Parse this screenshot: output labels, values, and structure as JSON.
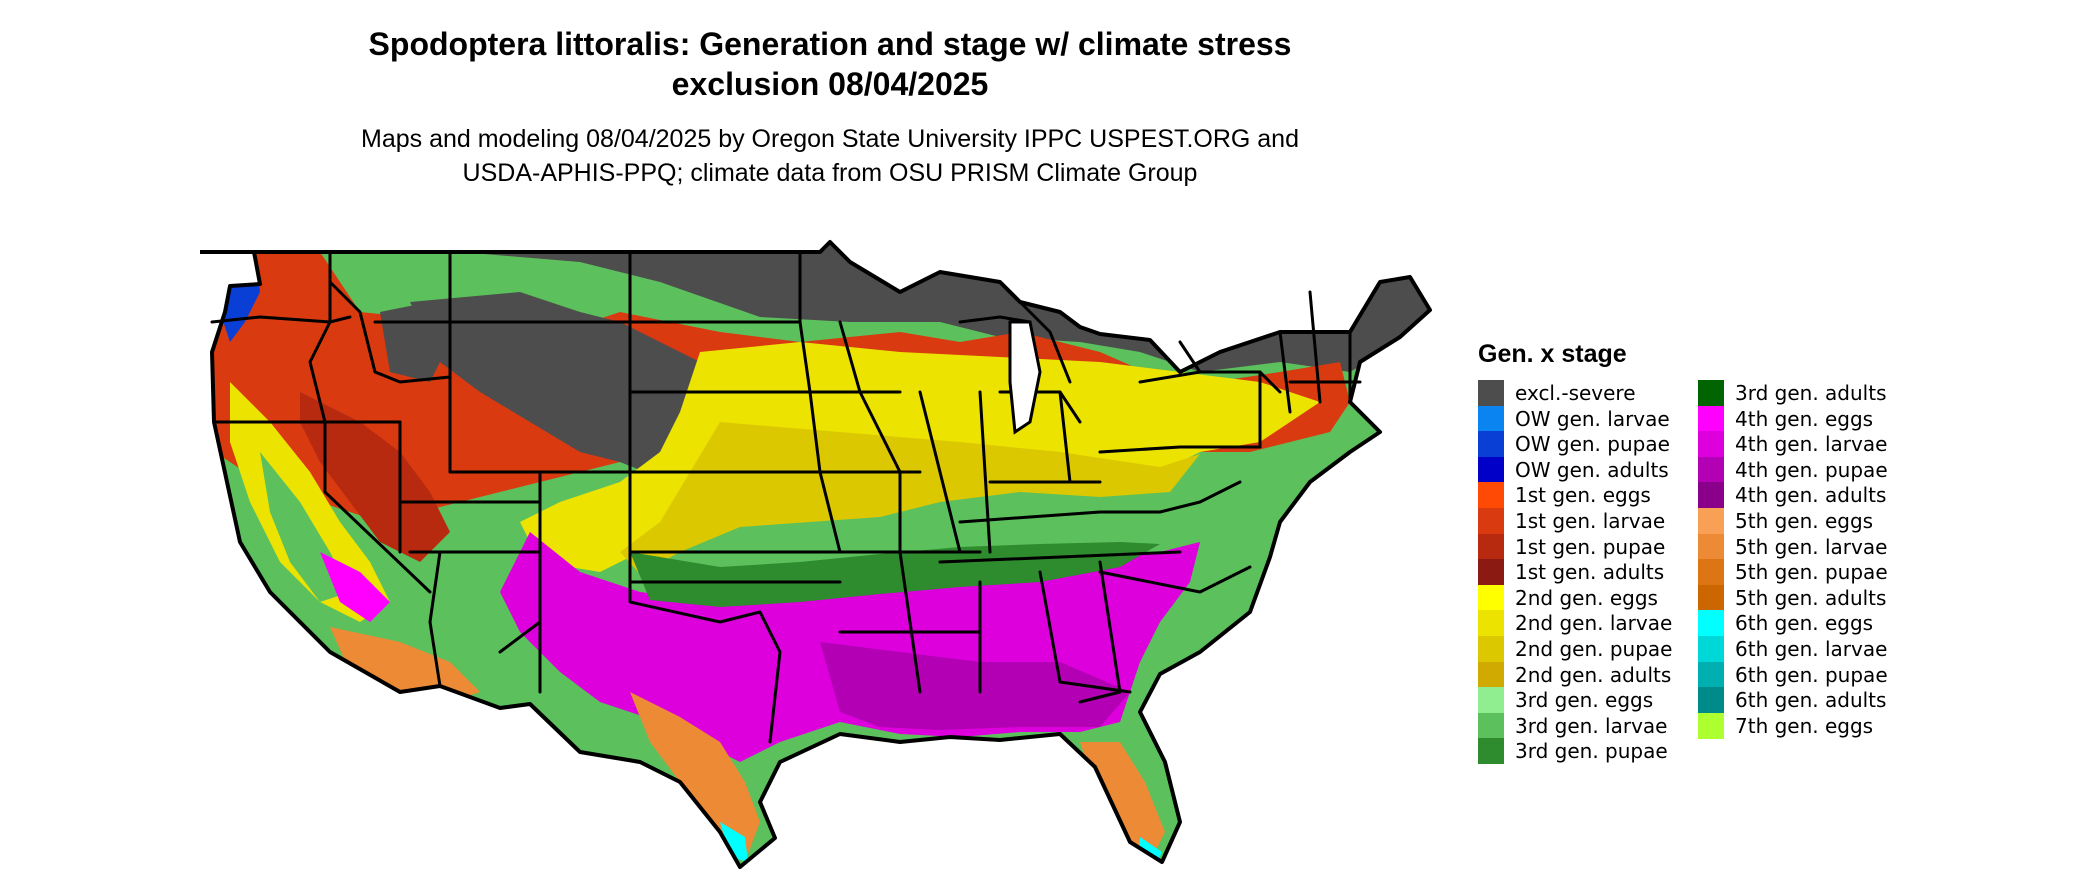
{
  "title_line1": "Spodoptera littoralis: Generation and stage w/ climate stress",
  "title_line2": "exclusion 08/04/2025",
  "subtitle_line1": "Maps and modeling 08/04/2025 by Oregon State University IPPC USPEST.ORG and",
  "subtitle_line2": "USDA-APHIS-PPQ; climate data from OSU PRISM Climate Group",
  "legend": {
    "title": "Gen. x stage",
    "items": [
      {
        "label": "excl.-severe",
        "color": "#4d4d4d"
      },
      {
        "label": "OW gen. larvae",
        "color": "#0a84f0"
      },
      {
        "label": "OW gen. pupae",
        "color": "#0a3fd6"
      },
      {
        "label": "OW gen. adults",
        "color": "#0000c8"
      },
      {
        "label": "1st gen. eggs",
        "color": "#ff4a06"
      },
      {
        "label": "1st gen. larvae",
        "color": "#d93a10"
      },
      {
        "label": "1st gen. pupae",
        "color": "#b82a10"
      },
      {
        "label": "1st gen. adults",
        "color": "#8b1a12"
      },
      {
        "label": "2nd gen. eggs",
        "color": "#ffff00"
      },
      {
        "label": "2nd gen. larvae",
        "color": "#ece400"
      },
      {
        "label": "2nd gen. pupae",
        "color": "#dcc800"
      },
      {
        "label": "2nd gen. adults",
        "color": "#d0aa00"
      },
      {
        "label": "3rd gen. eggs",
        "color": "#90ee90"
      },
      {
        "label": "3rd gen. larvae",
        "color": "#5cc05c"
      },
      {
        "label": "3rd gen. pupae",
        "color": "#2e8b2e"
      },
      {
        "label": "3rd gen. adults",
        "color": "#006400"
      },
      {
        "label": "4th gen. eggs",
        "color": "#ff00ff"
      },
      {
        "label": "4th gen. larvae",
        "color": "#dd00dd"
      },
      {
        "label": "4th gen. pupae",
        "color": "#b400b4"
      },
      {
        "label": "4th gen. adults",
        "color": "#8b008b"
      },
      {
        "label": "5th gen. eggs",
        "color": "#f8a055"
      },
      {
        "label": "5th gen. larvae",
        "color": "#ec8a35"
      },
      {
        "label": "5th gen. pupae",
        "color": "#de7515"
      },
      {
        "label": "5th gen. adults",
        "color": "#cc6600"
      },
      {
        "label": "6th gen. eggs",
        "color": "#00ffff"
      },
      {
        "label": "6th gen. larvae",
        "color": "#00d8d8"
      },
      {
        "label": "6th gen. pupae",
        "color": "#00b0b0"
      },
      {
        "label": "6th gen. adults",
        "color": "#008b8b"
      },
      {
        "label": "7th gen. eggs",
        "color": "#adff2f"
      }
    ]
  }
}
